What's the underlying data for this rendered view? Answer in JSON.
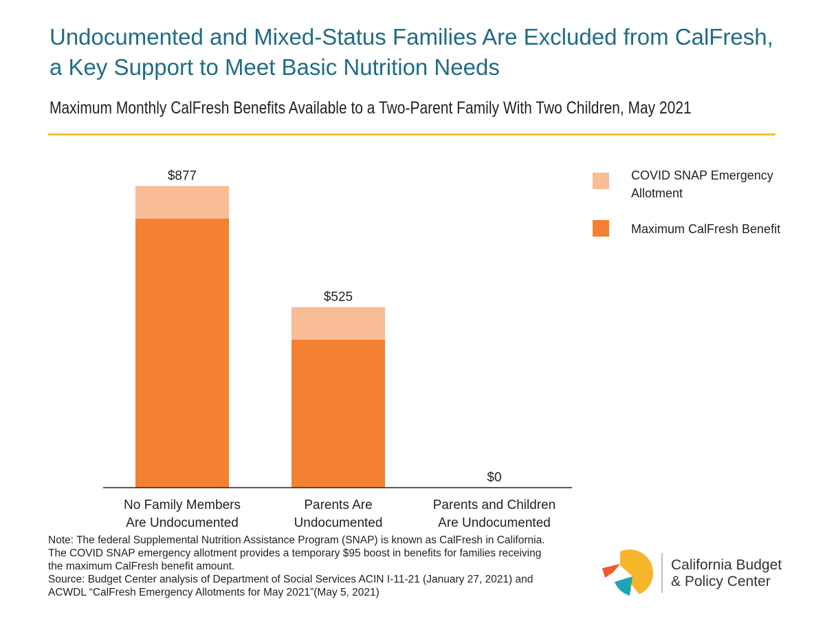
{
  "title": "Undocumented and Mixed-Status Families Are Excluded from CalFresh, a Key Support to Meet Basic Nutrition Needs",
  "colors": {
    "title": "#1e6c86",
    "rule": "#f2c22e",
    "max_benefit": "#f48032",
    "covid_allotment": "#f8bc96",
    "logo_yellow": "#f7b52c",
    "logo_orange": "#f05a28",
    "logo_teal": "#1fa3b5"
  },
  "chart_data": {
    "type": "bar",
    "stacked": true,
    "title": "Maximum Monthly CalFresh Benefits Available to a Two-Parent Family With Two Children, May 2021",
    "categories": [
      "No Family Members Are Undocumented",
      "Parents Are Undocumented",
      "Parents and Children Are Undocumented"
    ],
    "category_labels": [
      [
        "No Family Members",
        "Are Undocumented"
      ],
      [
        "Parents Are",
        "Undocumented"
      ],
      [
        "Parents and Children",
        "Are Undocumented"
      ]
    ],
    "series": [
      {
        "name": "Maximum CalFresh Benefit",
        "values": [
          782,
          430,
          0
        ]
      },
      {
        "name": "COVID SNAP Emergency Allotment",
        "values": [
          95,
          95,
          0
        ]
      }
    ],
    "totals": [
      877,
      525,
      0
    ],
    "total_labels": [
      "$877",
      "$525",
      "$0"
    ],
    "legend": [
      {
        "label_lines": [
          "COVID SNAP Emergency",
          "Allotment"
        ],
        "series": "COVID SNAP Emergency Allotment"
      },
      {
        "label_lines": [
          "Maximum CalFresh Benefit"
        ],
        "series": "Maximum CalFresh Benefit"
      }
    ],
    "legend_position": "top-right",
    "ylim": [
      0,
      1000
    ],
    "xlabel": "",
    "ylabel": "",
    "grid": false,
    "y_axis_visible": false
  },
  "notes": [
    "Note: The federal Supplemental Nutrition Assistance Program (SNAP) is known as CalFresh in California.",
    "The COVID SNAP emergency allotment provides a temporary $95 boost in benefits for families receiving",
    "the maximum CalFresh benefit amount.",
    "Source: Budget Center analysis of Department of Social Services ACIN I-11-21 (January 27, 2021) and",
    "ACWDL “CalFresh Emergency Allotments for May 2021”(May 5, 2021)"
  ],
  "logo": {
    "name_line1": "California Budget",
    "name_line2": "& Policy Center"
  }
}
